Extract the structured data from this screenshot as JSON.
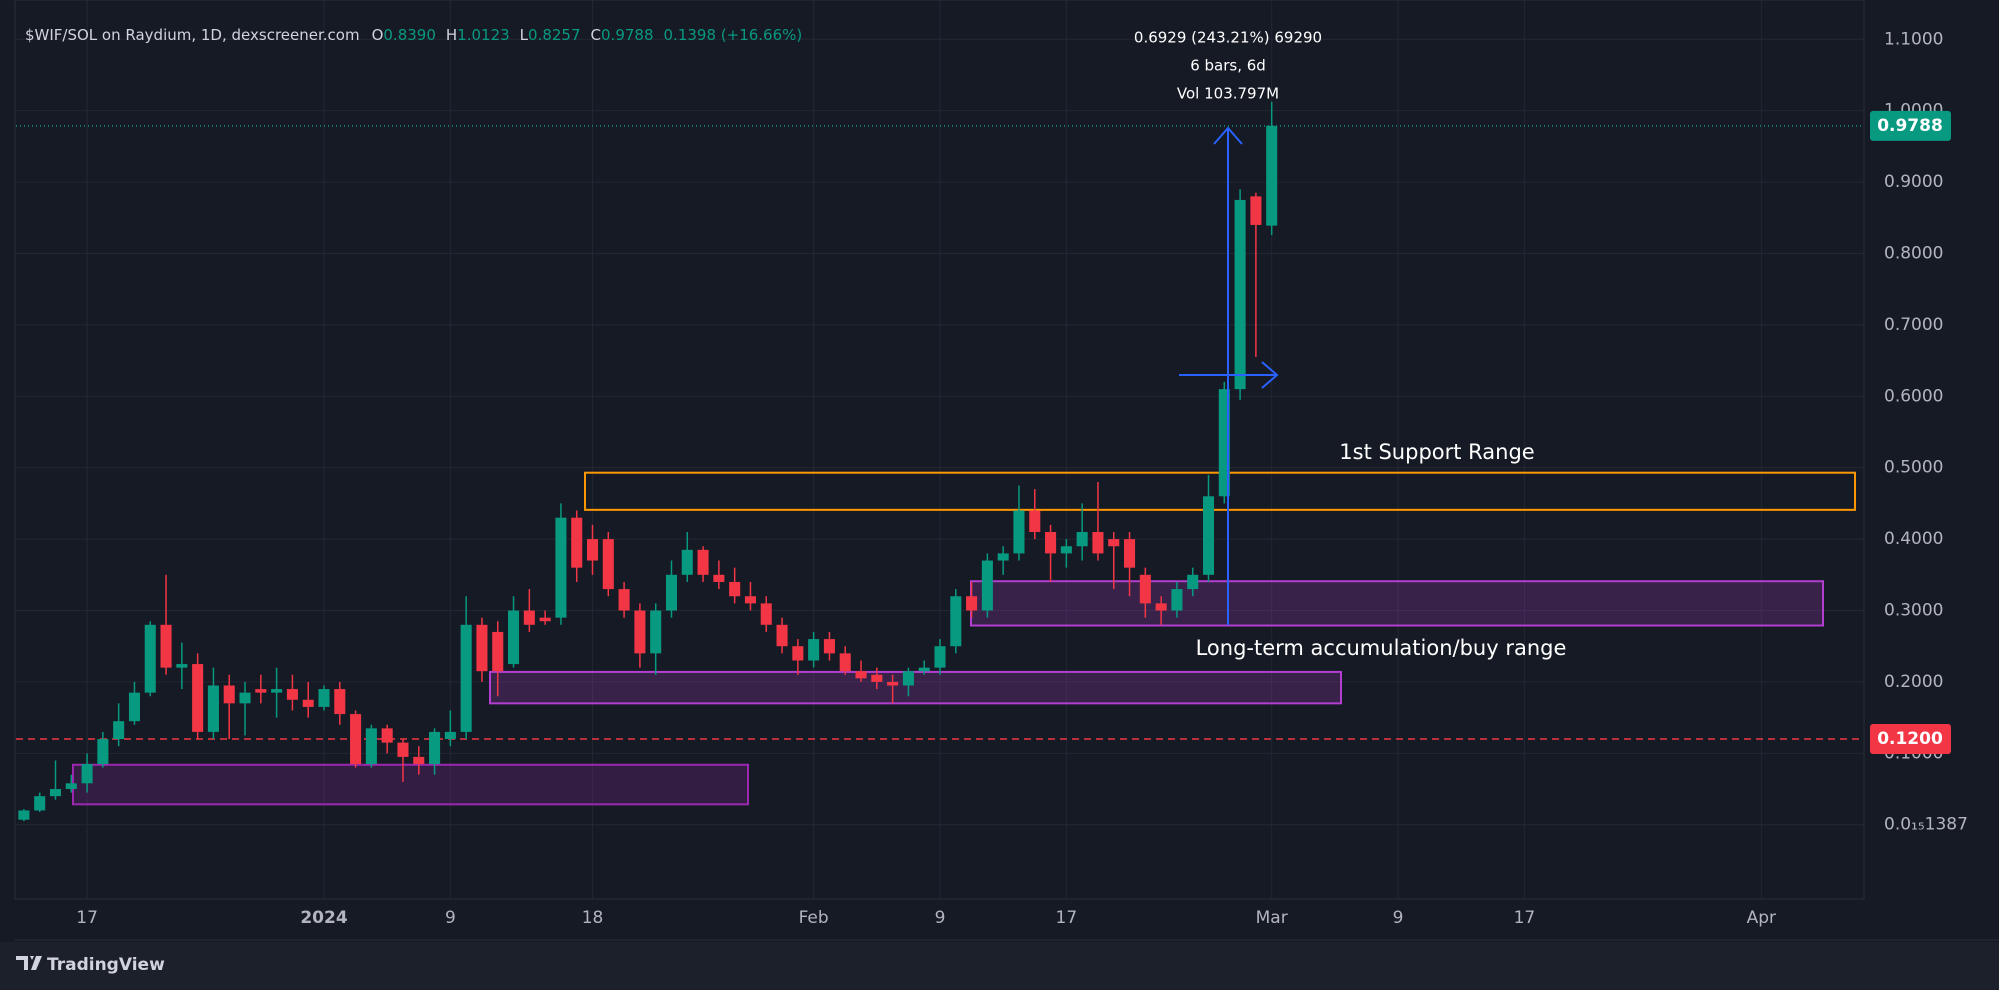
{
  "chart_data": {
    "type": "candlestick",
    "title": "$WIF/SOL on Raydium, 1D, dexscreener.com",
    "ohlc_legend": [
      {
        "key": "O",
        "value": "0.8390"
      },
      {
        "key": "H",
        "value": "1.0123"
      },
      {
        "key": "L",
        "value": "0.8257"
      },
      {
        "key": "C",
        "value": "0.9788"
      }
    ],
    "change": "0.1398 (+16.66%)",
    "up_color": "#089981",
    "down_color": "#f23645",
    "grid": true,
    "categories": [
      null,
      null,
      null,
      null,
      "17",
      null,
      null,
      null,
      null,
      null,
      null,
      null,
      null,
      null,
      null,
      null,
      null,
      null,
      null,
      "2024",
      null,
      null,
      null,
      null,
      null,
      null,
      null,
      "9",
      null,
      null,
      null,
      null,
      null,
      null,
      null,
      null,
      "18",
      null,
      null,
      null,
      null,
      null,
      null,
      null,
      null,
      null,
      null,
      null,
      null,
      null,
      "Feb",
      null,
      null,
      null,
      null,
      null,
      null,
      null,
      "9",
      null,
      null,
      null,
      null,
      null,
      null,
      null,
      "17",
      null,
      null,
      null,
      null,
      null,
      null,
      null,
      null,
      null,
      null,
      null,
      null,
      "Mar",
      null,
      null,
      null,
      null,
      null,
      null,
      null,
      "9",
      null,
      null,
      null,
      null,
      null,
      null,
      null,
      "17",
      null,
      null,
      null,
      null,
      null,
      null,
      null,
      null,
      null,
      null,
      null,
      null,
      null,
      null,
      "Apr",
      null,
      null,
      null,
      null,
      null,
      null
    ],
    "open": [
      0.007,
      0.02,
      0.04,
      0.05,
      0.058,
      0.085,
      0.12,
      0.145,
      0.185,
      0.28,
      0.22,
      0.225,
      0.13,
      0.195,
      0.17,
      0.19,
      0.185,
      0.19,
      0.175,
      0.165,
      0.19,
      0.155,
      0.085,
      0.135,
      0.115,
      0.095,
      0.085,
      0.12,
      0.13,
      0.28,
      0.27,
      0.225,
      0.3,
      0.29,
      0.29,
      0.43,
      0.4,
      0.4,
      0.33,
      0.3,
      0.24,
      0.3,
      0.35,
      0.385,
      0.35,
      0.34,
      0.32,
      0.31,
      0.28,
      0.25,
      0.23,
      0.26,
      0.24,
      0.215,
      0.21,
      0.2,
      0.195,
      0.215,
      0.22,
      0.25,
      0.32,
      0.3,
      0.37,
      0.38,
      0.44,
      0.41,
      0.38,
      0.39,
      0.41,
      0.4,
      0.4,
      0.35,
      0.31,
      0.3,
      0.33,
      0.35,
      0.46,
      0.61,
      0.88,
      0.839,
      null,
      null,
      null,
      null,
      null,
      null,
      null,
      null,
      null,
      null,
      null,
      null,
      null,
      null,
      null,
      null,
      null,
      null,
      null,
      null,
      null,
      null,
      null,
      null,
      null,
      null,
      null,
      null,
      null,
      null,
      null,
      null,
      null,
      null,
      null,
      null,
      null
    ],
    "high": [
      0.022,
      0.045,
      0.09,
      0.07,
      0.1,
      0.13,
      0.17,
      0.2,
      0.285,
      0.35,
      0.255,
      0.24,
      0.22,
      0.21,
      0.2,
      0.21,
      0.22,
      0.21,
      0.2,
      0.195,
      0.2,
      0.16,
      0.14,
      0.14,
      0.12,
      0.11,
      0.135,
      0.16,
      0.32,
      0.29,
      0.285,
      0.32,
      0.33,
      0.3,
      0.45,
      0.44,
      0.42,
      0.41,
      0.34,
      0.31,
      0.31,
      0.37,
      0.41,
      0.39,
      0.37,
      0.36,
      0.34,
      0.32,
      0.29,
      0.26,
      0.27,
      0.27,
      0.25,
      0.23,
      0.22,
      0.21,
      0.22,
      0.23,
      0.26,
      0.33,
      0.34,
      0.38,
      0.39,
      0.475,
      0.47,
      0.42,
      0.4,
      0.45,
      0.48,
      0.41,
      0.41,
      0.36,
      0.32,
      0.34,
      0.36,
      0.49,
      0.62,
      0.89,
      0.885,
      1.0123,
      null,
      null,
      null,
      null,
      null,
      null,
      null,
      null,
      null,
      null,
      null,
      null,
      null,
      null,
      null,
      null,
      null,
      null,
      null,
      null,
      null,
      null,
      null,
      null,
      null,
      null,
      null,
      null,
      null,
      null,
      null,
      null,
      null,
      null,
      null,
      null,
      null
    ],
    "low": [
      0.005,
      0.018,
      0.035,
      0.045,
      0.045,
      0.08,
      0.11,
      0.14,
      0.18,
      0.21,
      0.19,
      0.12,
      0.12,
      0.12,
      0.125,
      0.17,
      0.15,
      0.16,
      0.15,
      0.16,
      0.14,
      0.08,
      0.08,
      0.1,
      0.06,
      0.07,
      0.07,
      0.11,
      0.12,
      0.2,
      0.18,
      0.22,
      0.27,
      0.28,
      0.28,
      0.34,
      0.35,
      0.32,
      0.29,
      0.22,
      0.21,
      0.29,
      0.34,
      0.34,
      0.33,
      0.31,
      0.3,
      0.27,
      0.24,
      0.21,
      0.22,
      0.23,
      0.21,
      0.2,
      0.19,
      0.17,
      0.18,
      0.21,
      0.21,
      0.24,
      0.29,
      0.29,
      0.35,
      0.37,
      0.4,
      0.34,
      0.36,
      0.37,
      0.37,
      0.33,
      0.32,
      0.29,
      0.28,
      0.29,
      0.32,
      0.34,
      0.45,
      0.595,
      0.655,
      0.8257,
      null,
      null,
      null,
      null,
      null,
      null,
      null,
      null,
      null,
      null,
      null,
      null,
      null,
      null,
      null,
      null,
      null,
      null,
      null,
      null,
      null,
      null,
      null,
      null,
      null,
      null,
      null,
      null,
      null,
      null,
      null,
      null,
      null,
      null,
      null,
      null,
      null
    ],
    "close": [
      0.02,
      0.04,
      0.05,
      0.058,
      0.085,
      0.12,
      0.145,
      0.185,
      0.28,
      0.22,
      0.225,
      0.13,
      0.195,
      0.17,
      0.185,
      0.185,
      0.19,
      0.175,
      0.165,
      0.19,
      0.155,
      0.085,
      0.135,
      0.115,
      0.095,
      0.085,
      0.13,
      0.13,
      0.28,
      0.215,
      0.215,
      0.3,
      0.28,
      0.285,
      0.43,
      0.36,
      0.37,
      0.33,
      0.3,
      0.24,
      0.3,
      0.35,
      0.385,
      0.35,
      0.34,
      0.32,
      0.31,
      0.28,
      0.25,
      0.23,
      0.26,
      0.24,
      0.215,
      0.205,
      0.2,
      0.195,
      0.215,
      0.22,
      0.25,
      0.32,
      0.3,
      0.37,
      0.38,
      0.44,
      0.41,
      0.38,
      0.39,
      0.41,
      0.38,
      0.39,
      0.36,
      0.31,
      0.3,
      0.33,
      0.35,
      0.46,
      0.61,
      0.875,
      0.84,
      0.9788,
      null,
      null,
      null,
      null,
      null,
      null,
      null,
      null,
      null,
      null,
      null,
      null,
      null,
      null,
      null,
      null,
      null,
      null,
      null,
      null,
      null,
      null,
      null,
      null,
      null,
      null,
      null,
      null,
      null,
      null,
      null,
      null,
      null,
      null,
      null,
      null,
      null
    ],
    "ylim": [
      -0.104,
      1.155
    ],
    "yticks": [
      {
        "value": 0,
        "label": "0.0₁₅1387"
      },
      {
        "value": 0.1,
        "label": "0.1000"
      },
      {
        "value": 0.2,
        "label": "0.2000"
      },
      {
        "value": 0.3,
        "label": "0.3000"
      },
      {
        "value": 0.4,
        "label": "0.4000"
      },
      {
        "value": 0.5,
        "label": "0.5000"
      },
      {
        "value": 0.6,
        "label": "0.6000"
      },
      {
        "value": 0.7,
        "label": "0.7000"
      },
      {
        "value": 0.8,
        "label": "0.8000"
      },
      {
        "value": 0.9,
        "label": "0.9000"
      },
      {
        "value": 1,
        "label": "1.0000"
      },
      {
        "value": 1.1,
        "label": "1.1000"
      }
    ],
    "last_price": {
      "value": 0.9788,
      "label": "0.9788",
      "color": "#089981"
    },
    "alert_line": {
      "value": 0.12,
      "label": "0.1200",
      "color": "#f23645"
    },
    "zones": [
      {
        "low": 0.0286,
        "high": 0.084,
        "color": "#9c27b0"
      },
      {
        "low": 0.17,
        "high": 0.214,
        "color": "#b23fd0"
      },
      {
        "low": 0.279,
        "high": 0.341,
        "color": "#b23fd0"
      },
      {
        "low": 0.441,
        "high": 0.493,
        "color": "#ff9800"
      }
    ],
    "annotations": [
      "1st Support Range",
      "Long-term accumulation/buy range"
    ],
    "measure": [
      "0.6929 (243.21%) 69290",
      "6 bars, 6d",
      "Vol 103.797M"
    ],
    "brand": "TradingView"
  }
}
